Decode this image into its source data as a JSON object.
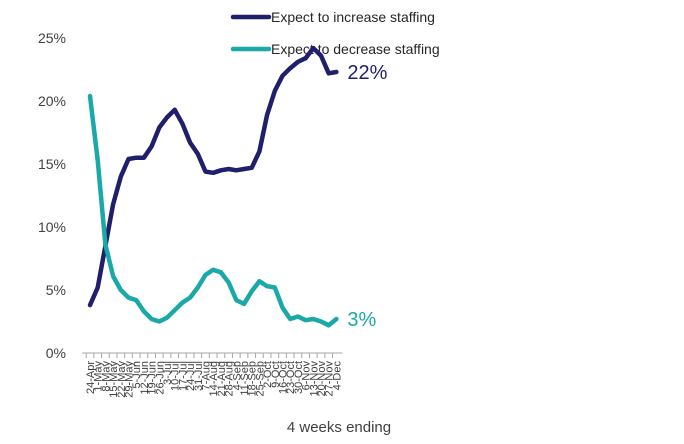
{
  "chart_data": {
    "type": "line",
    "xlabel": "4 weeks ending",
    "ylabel": "",
    "ylim": [
      0,
      25
    ],
    "yticks": [
      0,
      5,
      10,
      15,
      20,
      25
    ],
    "ytick_labels": [
      "0%",
      "5%",
      "10%",
      "15%",
      "20%",
      "25%"
    ],
    "grid": false,
    "legend_position": "top",
    "categories": [
      "24-Apr",
      "1-May",
      "8-May",
      "15-May",
      "22-May",
      "29-May",
      "5-Jun",
      "12-Jun",
      "19-Jun",
      "26-Jun",
      "3-Jul",
      "10-Jul",
      "17-Jul",
      "24-Jul",
      "31-Jul",
      "7-Aug",
      "14-Aug",
      "21-Aug",
      "28-Aug",
      "4-Sep",
      "11-Sep",
      "18-Sep",
      "25-Sep",
      "2-Oct",
      "9-Oct",
      "16-Oct",
      "23-Oct",
      "30-Oct",
      "6-Nov",
      "13-Nov",
      "20-Nov",
      "27-Nov",
      "4-Dec"
    ],
    "series": [
      {
        "name": "Expect to increase staffing",
        "color": "#1f1f6b",
        "end_label": "22%",
        "values": [
          3.8,
          5.2,
          8.5,
          11.8,
          14.0,
          15.4,
          15.5,
          15.5,
          16.4,
          17.9,
          18.7,
          19.3,
          18.2,
          16.7,
          15.8,
          14.4,
          14.3,
          14.5,
          14.6,
          14.5,
          14.6,
          14.7,
          16.0,
          18.9,
          20.8,
          22.0,
          22.6,
          23.1,
          23.4,
          24.2,
          23.6,
          22.2,
          22.3
        ]
      },
      {
        "name": "Expect to decrease staffing",
        "color": "#1aa8a8",
        "end_label": "3%",
        "values": [
          20.4,
          15.3,
          8.6,
          6.1,
          5.0,
          4.4,
          4.2,
          3.3,
          2.7,
          2.5,
          2.8,
          3.4,
          4.0,
          4.4,
          5.2,
          6.2,
          6.6,
          6.4,
          5.6,
          4.2,
          3.9,
          4.9,
          5.7,
          5.3,
          5.2,
          3.6,
          2.7,
          2.9,
          2.6,
          2.7,
          2.5,
          2.2,
          2.7
        ]
      }
    ]
  }
}
